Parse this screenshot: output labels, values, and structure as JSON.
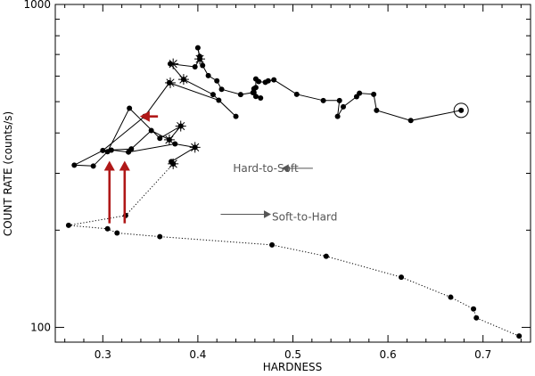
{
  "chart_data": {
    "type": "scatter",
    "xlabel": "HARDNESS",
    "ylabel": "COUNT RATE (counts/s)",
    "xlim": [
      0.25,
      0.75
    ],
    "ylim": [
      90,
      1000
    ],
    "yscale": "log",
    "x_ticks": [
      0.3,
      0.4,
      0.5,
      0.6,
      0.7
    ],
    "x_tick_labels": [
      "0.3",
      "0.4",
      "0.5",
      "0.6",
      "0.7"
    ],
    "y_ticks": [
      100,
      1000
    ],
    "y_tick_labels": [
      "100",
      "1000"
    ],
    "grid": false,
    "legend": "none",
    "series": [
      {
        "style": "solid",
        "points": [
          [
            0.677,
            470
          ],
          [
            0.624,
            437
          ],
          [
            0.588,
            470
          ],
          [
            0.585,
            527
          ],
          [
            0.57,
            531
          ],
          [
            0.567,
            518
          ],
          [
            0.553,
            482
          ],
          [
            0.547,
            450
          ],
          [
            0.549,
            504
          ],
          [
            0.532,
            504
          ],
          [
            0.504,
            527
          ],
          [
            0.48,
            584
          ],
          [
            0.474,
            580
          ],
          [
            0.471,
            574
          ],
          [
            0.464,
            577
          ],
          [
            0.461,
            588
          ],
          [
            0.461,
            553
          ],
          [
            0.459,
            548
          ],
          [
            0.458,
            533
          ],
          [
            0.461,
            519
          ],
          [
            0.466,
            513
          ],
          [
            0.459,
            534
          ],
          [
            0.445,
            526
          ],
          [
            0.425,
            546
          ],
          [
            0.42,
            580
          ],
          [
            0.411,
            602
          ],
          [
            0.405,
            647
          ],
          [
            0.402,
            690
          ],
          [
            0.4,
            734
          ],
          [
            0.402,
            678
          ],
          [
            0.397,
            641
          ],
          [
            0.371,
            655
          ],
          [
            0.385,
            586
          ],
          [
            0.416,
            526
          ],
          [
            0.44,
            450
          ],
          [
            0.422,
            505
          ],
          [
            0.37,
            572
          ],
          [
            0.344,
            450
          ],
          [
            0.3,
            353
          ],
          [
            0.27,
            318
          ],
          [
            0.29,
            316
          ],
          [
            0.305,
            350
          ],
          [
            0.328,
            477
          ],
          [
            0.36,
            385
          ],
          [
            0.382,
            420
          ],
          [
            0.37,
            381
          ],
          [
            0.351,
            407
          ],
          [
            0.33,
            357
          ],
          [
            0.309,
            354
          ],
          [
            0.327,
            349
          ],
          [
            0.376,
            370
          ],
          [
            0.397,
            361
          ],
          [
            0.372,
            326
          ],
          [
            0.374,
            321
          ]
        ]
      },
      {
        "style": "dotted",
        "points": [
          [
            0.374,
            321
          ],
          [
            0.324,
            222
          ],
          [
            0.264,
            207
          ],
          [
            0.305,
            202
          ],
          [
            0.315,
            196
          ],
          [
            0.36,
            191
          ],
          [
            0.478,
            180
          ],
          [
            0.535,
            166
          ],
          [
            0.614,
            143
          ],
          [
            0.666,
            124
          ],
          [
            0.69,
            114
          ],
          [
            0.693,
            107
          ],
          [
            0.738,
            94
          ]
        ]
      }
    ],
    "star_markers": [
      [
        0.374,
        655
      ],
      [
        0.371,
        572
      ],
      [
        0.385,
        586
      ],
      [
        0.402,
        678
      ],
      [
        0.382,
        420
      ],
      [
        0.37,
        381
      ],
      [
        0.397,
        361
      ],
      [
        0.374,
        321
      ]
    ],
    "circled_point": [
      0.677,
      470
    ],
    "red_arrows": [
      {
        "from": [
          0.358,
          450
        ],
        "to": [
          0.339,
          450
        ]
      },
      {
        "from": [
          0.307,
          210
        ],
        "to": [
          0.307,
          328
        ]
      },
      {
        "from": [
          0.323,
          210
        ],
        "to": [
          0.323,
          328
        ]
      }
    ],
    "annotations": [
      {
        "text": "Hard-to-Soft",
        "x": 0.437,
        "y": 311,
        "arrow": "left",
        "arrow_from": [
          0.488,
          311
        ],
        "arrow_to": [
          0.521,
          311
        ]
      },
      {
        "text": "Soft-to-Hard",
        "x": 0.478,
        "y": 220,
        "arrow": "right",
        "arrow_from": [
          0.424,
          224
        ],
        "arrow_to": [
          0.477,
          224
        ]
      }
    ],
    "colors": {
      "line": "#000000",
      "red_arrow": "#b01818",
      "gray_annotation": "#555555"
    }
  }
}
